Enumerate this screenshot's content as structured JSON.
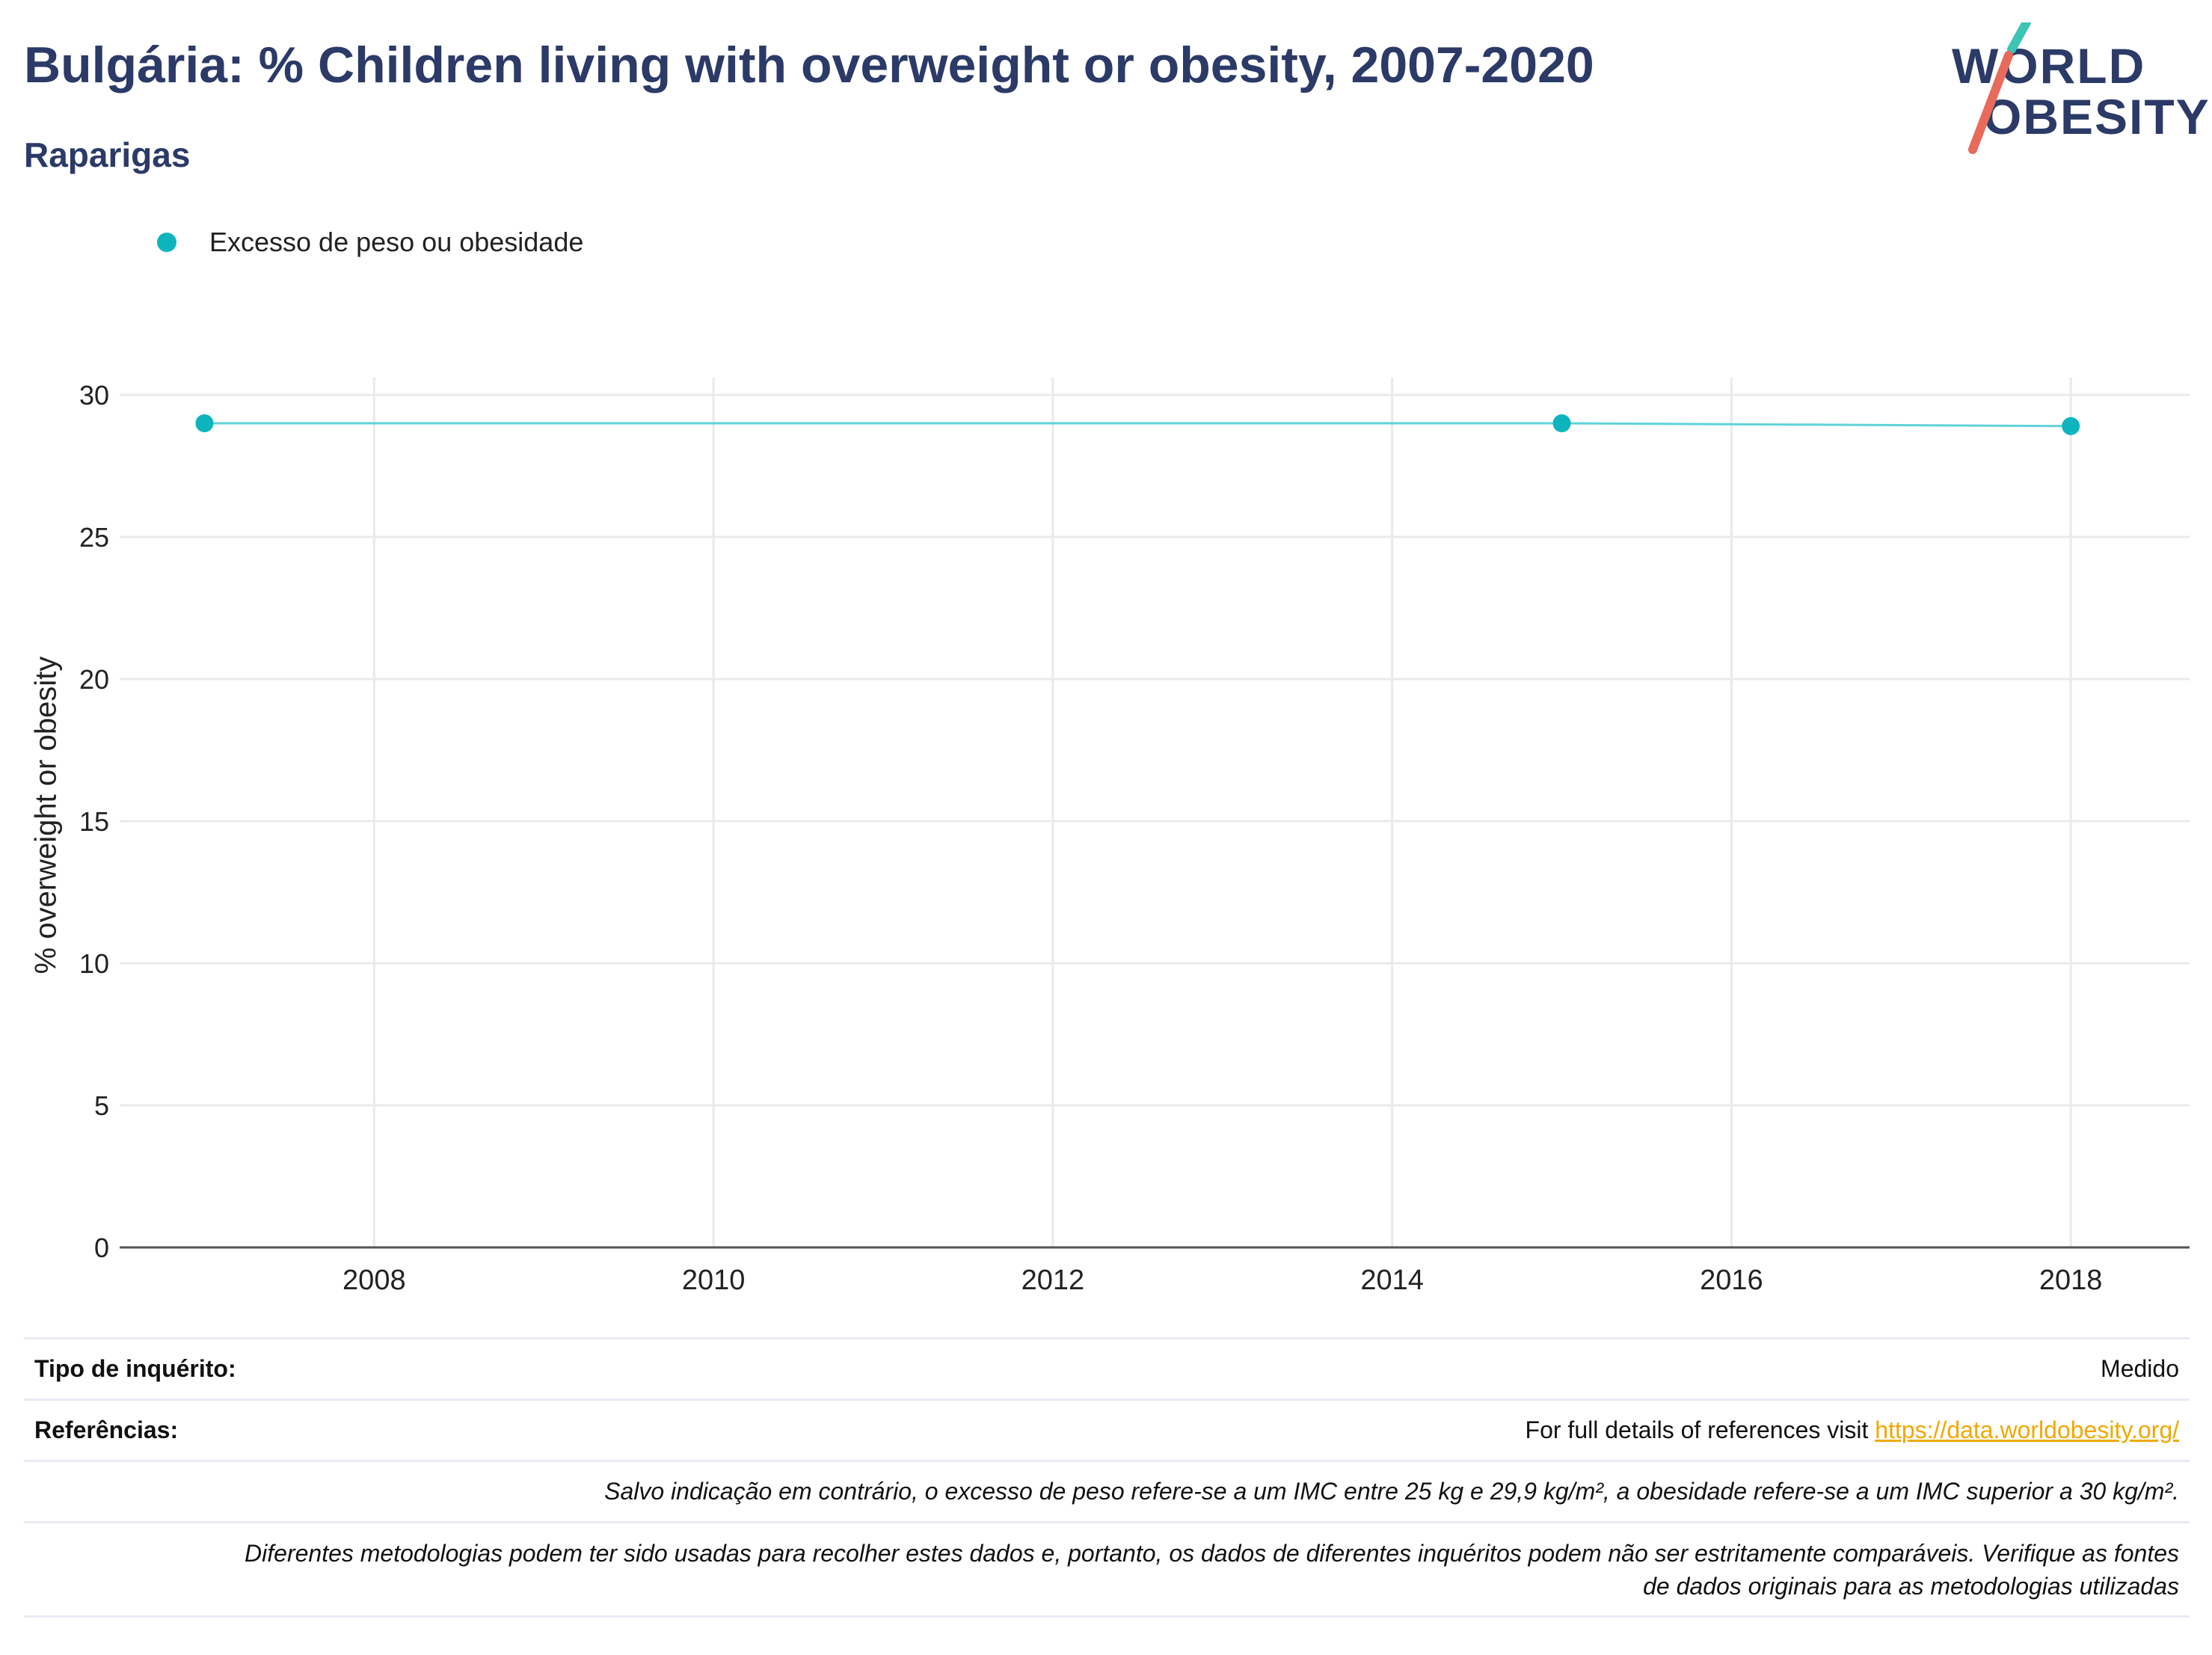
{
  "title": "Bulgária: % Children living with overweight or obesity, 2007-2020",
  "subtitle": "Raparigas",
  "logo": {
    "line1": "WORLD",
    "line2": "OBESITY",
    "accent_teal": "#3cc4b4",
    "accent_red": "#e86a5a"
  },
  "legend": {
    "label": "Excesso de peso ou obesidade",
    "color": "#0eb4bd"
  },
  "chart_data": {
    "type": "line",
    "ylabel": "% overweight or obesity",
    "xlabel": "",
    "xlim": [
      2006.5,
      2018.7
    ],
    "ylim": [
      0,
      30
    ],
    "x_ticks": [
      2008,
      2010,
      2012,
      2014,
      2016,
      2018
    ],
    "y_ticks": [
      0,
      5,
      10,
      15,
      20,
      25,
      30
    ],
    "grid": true,
    "legend_position": "top-left",
    "series": [
      {
        "name": "Excesso de peso ou obesidade",
        "color": "#0eb4bd",
        "line_color": "#5fd3d8",
        "x": [
          2007,
          2015,
          2018
        ],
        "y": [
          29.0,
          29.0,
          28.9
        ]
      }
    ]
  },
  "table": {
    "survey_type_label": "Tipo de inquérito:",
    "survey_type_value": "Medido",
    "references_label": "Referências:",
    "references_text": "For full details of references visit",
    "references_link": "https://data.worldobesity.org/",
    "note1": "Salvo indicação em contrário, o excesso de peso refere-se a um IMC entre 25 kg e 29,9 kg/m², a obesidade refere-se a um IMC superior a 30 kg/m².",
    "note2_line1": "Diferentes metodologias podem ter sido usadas para recolher estes dados e, portanto, os dados de diferentes inquéritos podem não ser estritamente comparáveis. Verifique as fontes",
    "note2_line2": "de dados originais para as metodologias utilizadas"
  }
}
